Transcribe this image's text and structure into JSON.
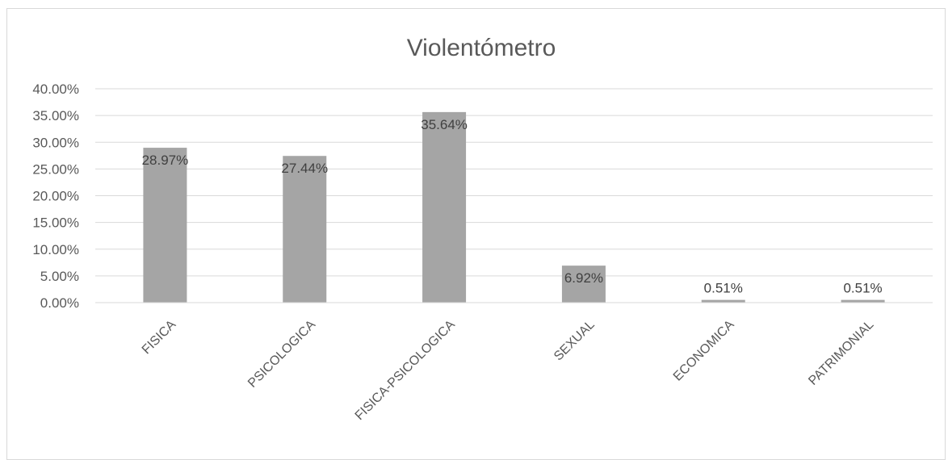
{
  "chart_data": {
    "type": "bar",
    "title": "Violentómetro",
    "categories": [
      "FISICA",
      "PSICOLOGICA",
      "FISICA-PSICOLOGICA",
      "SEXUAL",
      "ECONOMICA",
      "PATRIMONIAL"
    ],
    "values": [
      28.97,
      27.44,
      35.64,
      6.92,
      0.51,
      0.51
    ],
    "data_labels": [
      "28.97%",
      "27.44%",
      "35.64%",
      "6.92%",
      "0.51%",
      "0.51%"
    ],
    "y_ticks": [
      "0.00%",
      "5.00%",
      "10.00%",
      "15.00%",
      "20.00%",
      "25.00%",
      "30.00%",
      "35.00%",
      "40.00%"
    ],
    "ylim": [
      0,
      40
    ],
    "grid": true,
    "bar_color": "#a5a5a5",
    "grid_color": "#d9d9d9"
  }
}
